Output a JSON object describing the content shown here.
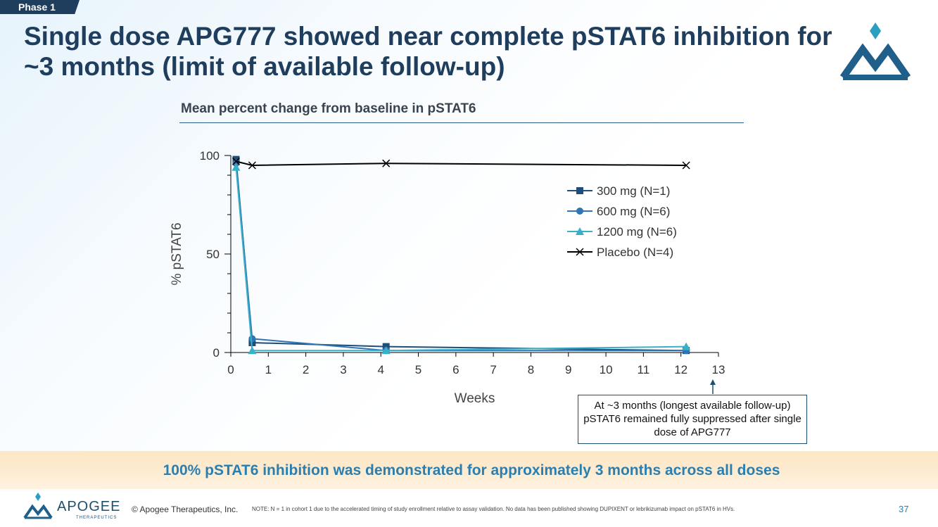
{
  "slide": {
    "phase_tab": "Phase 1",
    "title": "Single dose APG777 showed near complete pSTAT6 inhibition for ~3 months (limit of available follow-up)",
    "chart_title": "Mean percent change from baseline in pSTAT6",
    "callout": "At ~3 months (longest available follow-up) pSTAT6 remained fully suppressed after single dose of APG777",
    "banner": "100% pSTAT6 inhibition was demonstrated for approximately 3 months across all doses",
    "copyright": "© Apogee Therapeutics, Inc.",
    "note": "NOTE: N = 1 in cohort 1 due to the accelerated timing of study enrollment relative to assay validation. No data has been published showing DUPIXENT or lebrikizumab impact on pSTAT6 in HVs.",
    "page_number": "37",
    "logo_name": "APOGEE",
    "logo_sub": "THERAPEUTICS",
    "colors": {
      "navy": "#1f3d5c",
      "accent": "#2a7fb0",
      "teal": "#2a9fc0"
    }
  },
  "chart_data": {
    "type": "line",
    "xlabel": "Weeks",
    "ylabel": "% pSTAT6",
    "xlim": [
      0,
      13
    ],
    "ylim": [
      0,
      100
    ],
    "xticks": [
      "0",
      "1",
      "2",
      "3",
      "4",
      "5",
      "6",
      "7",
      "8",
      "9",
      "10",
      "11",
      "12",
      "13"
    ],
    "yticks": [
      "0",
      "50",
      "100"
    ],
    "legend_position": "upper-right",
    "series": [
      {
        "name": "300 mg (N=1)",
        "marker": "square",
        "color": "#1f4e79",
        "x": [
          0.14,
          0.57,
          4.14,
          12.14
        ],
        "y": [
          98,
          5,
          3,
          1
        ]
      },
      {
        "name": "600 mg (N=6)",
        "marker": "circle",
        "color": "#2e75b6",
        "x": [
          0.14,
          0.57,
          4.14,
          12.14
        ],
        "y": [
          96,
          7,
          1,
          1
        ]
      },
      {
        "name": "1200 mg (N=6)",
        "marker": "triangle",
        "color": "#3ab0c8",
        "x": [
          0.14,
          0.57,
          4.14,
          12.14
        ],
        "y": [
          94,
          1,
          1,
          3
        ]
      },
      {
        "name": "Placebo (N=4)",
        "marker": "x",
        "color": "#000000",
        "x": [
          0.14,
          0.57,
          4.14,
          12.14
        ],
        "y": [
          97,
          95,
          96,
          95
        ]
      }
    ]
  }
}
